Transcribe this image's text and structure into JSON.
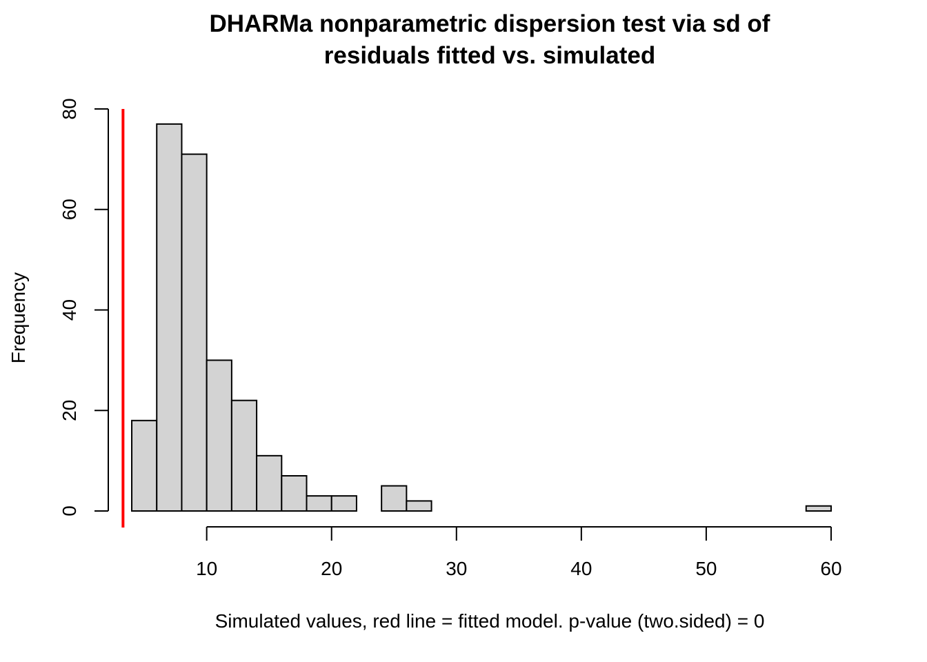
{
  "chart_data": {
    "type": "bar",
    "title_lines": [
      "DHARMa nonparametric dispersion test via sd of",
      "residuals fitted vs. simulated"
    ],
    "xlabel": "Simulated values, red line = fitted model. p-value (two.sided) = 0",
    "ylabel": "Frequency",
    "bin_edges": [
      4,
      6,
      8,
      10,
      12,
      14,
      16,
      18,
      20,
      22,
      24,
      26,
      28,
      30,
      32,
      34,
      36,
      38,
      40,
      42,
      44,
      46,
      48,
      50,
      52,
      54,
      56,
      58,
      60
    ],
    "counts": [
      18,
      77,
      71,
      30,
      22,
      11,
      7,
      3,
      3,
      0,
      5,
      2,
      0,
      0,
      0,
      0,
      0,
      0,
      0,
      0,
      0,
      0,
      0,
      0,
      0,
      0,
      0,
      1
    ],
    "x_ticks": [
      10,
      20,
      30,
      40,
      50,
      60
    ],
    "x_tick_labels": [
      "10",
      "20",
      "30",
      "40",
      "50",
      "60"
    ],
    "y_ticks": [
      0,
      20,
      40,
      60,
      80
    ],
    "y_tick_labels": [
      "0",
      "20",
      "40",
      "60",
      "80"
    ],
    "xlim": [
      2.12,
      61.88
    ],
    "ylim": [
      0,
      80
    ],
    "reference_line": {
      "x": 3.3,
      "color": "#ff0000"
    },
    "bar_fill": "#d3d3d3",
    "grid": false,
    "legend": "none"
  }
}
